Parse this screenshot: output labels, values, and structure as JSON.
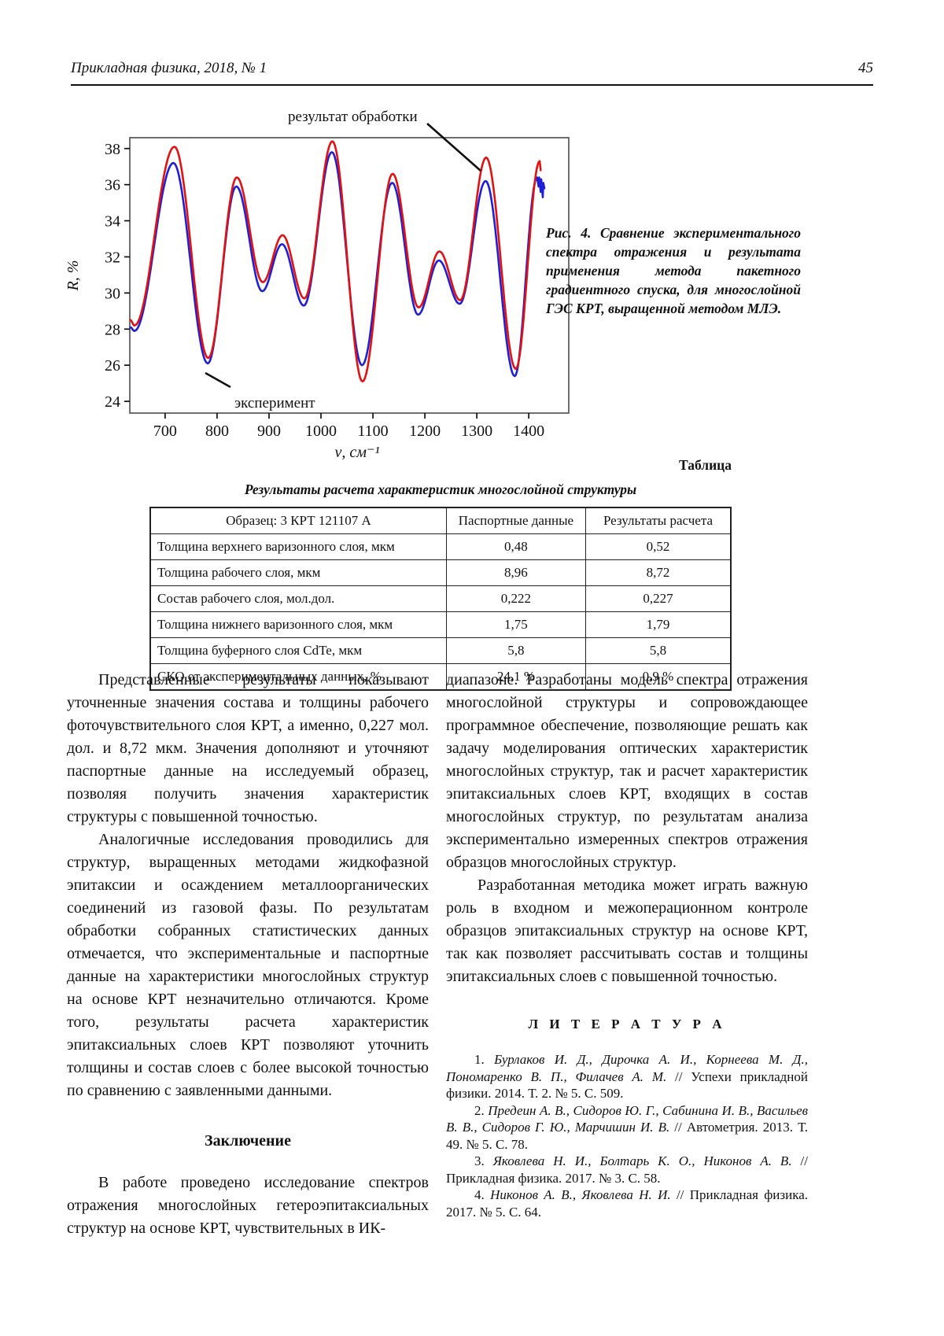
{
  "header": {
    "journal": "Прикладная физика, 2018, № 1",
    "page_number": "45"
  },
  "figure": {
    "caption": "Рис. 4. Сравнение экспериментального спектра отражения и результата применения метода пакетного градиентного спуска, для многослойной ГЭС КРТ, выращенной методом МЛЭ."
  },
  "chart_data": {
    "type": "line",
    "title": "",
    "xlabel": "ν, см⁻¹",
    "ylabel": "R, %",
    "xlim": [
      632,
      1477
    ],
    "ylim": [
      23.35,
      38.6
    ],
    "xticks": [
      700,
      800,
      900,
      1000,
      1100,
      1200,
      1300,
      1400
    ],
    "yticks": [
      24,
      26,
      28,
      30,
      32,
      34,
      36,
      38
    ],
    "grid": false,
    "legend_position": "annotations-on-plot",
    "series": [
      {
        "name": "эксперимент",
        "color": "#1f1fd6",
        "extrema": [
          [
            633,
            28.1
          ],
          [
            641,
            27.9
          ],
          [
            716,
            37.2
          ],
          [
            782,
            26.1
          ],
          [
            837,
            35.9
          ],
          [
            887,
            30.1
          ],
          [
            925,
            32.7
          ],
          [
            967,
            29.3
          ],
          [
            1021,
            37.8
          ],
          [
            1079,
            26.0
          ],
          [
            1137,
            36.1
          ],
          [
            1187,
            28.8
          ],
          [
            1227,
            31.8
          ],
          [
            1267,
            29.4
          ],
          [
            1317,
            36.2
          ],
          [
            1373,
            25.4
          ],
          [
            1416,
            36.4
          ]
        ],
        "tail": [
          [
            1419,
            35.9
          ],
          [
            1420,
            36.4
          ],
          [
            1423,
            35.6
          ],
          [
            1424,
            36.3
          ],
          [
            1427,
            35.3
          ],
          [
            1428,
            36.1
          ],
          [
            1430,
            35.8
          ]
        ]
      },
      {
        "name": "результат обработки",
        "color": "#e01212",
        "extrema": [
          [
            633,
            28.5
          ],
          [
            641,
            28.2
          ],
          [
            718,
            38.1
          ],
          [
            783,
            26.4
          ],
          [
            838,
            36.4
          ],
          [
            888,
            30.6
          ],
          [
            926,
            33.2
          ],
          [
            968,
            29.7
          ],
          [
            1022,
            38.4
          ],
          [
            1080,
            25.1
          ],
          [
            1138,
            36.6
          ],
          [
            1188,
            29.2
          ],
          [
            1228,
            32.3
          ],
          [
            1268,
            29.6
          ],
          [
            1318,
            37.5
          ],
          [
            1375,
            25.8
          ],
          [
            1421,
            37.3
          ]
        ],
        "tail": [
          [
            1423,
            36.8
          ]
        ]
      }
    ],
    "annotations": [
      {
        "text": "результат обработки",
        "label_pos": [
          281,
          32
        ],
        "line": [
          [
            458,
            35
          ],
          [
            526,
            95
          ]
        ]
      },
      {
        "text": "эксперимент",
        "label_pos": [
          213,
          396
        ],
        "line": [
          [
            208,
            370
          ],
          [
            176,
            352
          ]
        ]
      }
    ]
  },
  "table": {
    "label": "Таблица",
    "title": "Результаты расчета характеристик многослойной структуры",
    "header": [
      "Образец: 3 КРТ 121107 А",
      "Паспортные данные",
      "Результаты расчета"
    ],
    "rows": [
      {
        "param": "Толщина верхнего варизонного слоя, мкм",
        "passport": "0,48",
        "calc": "0,52"
      },
      {
        "param": "Толщина рабочего слоя, мкм",
        "passport": "8,96",
        "calc": "8,72"
      },
      {
        "param": "Состав рабочего слоя, мол.дол.",
        "passport": "0,222",
        "calc": "0,227"
      },
      {
        "param": "Толщина нижнего варизонного слоя, мкм",
        "passport": "1,75",
        "calc": "1,79"
      },
      {
        "param": "Толщина буферного слоя CdTe, мкм",
        "passport": "5,8",
        "calc": "5,8"
      },
      {
        "param": "СКО от экспериментальных данных, %",
        "passport": "24,1 %",
        "calc": "0,9 %"
      }
    ]
  },
  "body": {
    "left": {
      "p1": "Представленные результаты показывают уточненные значения состава и толщины рабочего фоточувствительного слоя КРТ, а именно, 0,227 мол. дол. и 8,72 мкм. Значения дополняют и уточняют паспортные данные на исследуемый образец, позволяя получить значения характеристик структуры с повышенной точностью.",
      "p2": "Аналогичные исследования проводились для структур, выращенных методами жидкофазной эпитаксии и осаждением металлоорганических соединений из газовой фазы. По результатам обработки собранных статистических данных отмечается, что экспериментальные и паспортные данные на характеристики многослойных структур на основе КРТ незначительно отличаются. Кроме того, результаты расчета характеристик эпитаксиальных слоев КРТ позволяют уточнить толщины и состав слоев с более высокой точностью по сравнению с заявленными данными.",
      "conclusion_heading": "Заключение",
      "p3": "В работе проведено исследование спектров отражения многослойных гетероэпитаксиальных структур на основе КРТ, чувствительных в ИК-"
    },
    "right": {
      "p4": "диапазоне. Разработаны модель спектра отражения многослойной структуры и сопровождающее программное обеспечение, позволяющие решать как задачу моделирования оптических характеристик многослойных структур, так и расчет характеристик эпитаксиальных слоев КРТ, входящих в состав многослойных структур, по результатам анализа экспериментально измеренных спектров отражения образцов многослойных структур.",
      "p5": "Разработанная методика может играть важную роль в входном и межоперационном контроле образцов эпитаксиальных структур на основе КРТ, так как позволяет рассчитывать состав и толщины эпитаксиальных слоев с повышенной точностью.",
      "literature_heading": "Л И Т Е Р А Т У Р А"
    }
  },
  "references": [
    {
      "num": "1.",
      "authors": "Бурлаков И. Д., Дирочка А. И., Корнеева М. Д., Пономаренко В. П., Филачев А. М.",
      "source": " // Успехи прикладной физики. 2014. Т. 2. № 5. С. 509."
    },
    {
      "num": "2.",
      "authors": "Предеин А. В., Сидоров Ю. Г., Сабинина И. В., Васильев В. В., Сидоров Г. Ю., Марчишин И. В.",
      "source": " // Автометрия. 2013. Т. 49. № 5. С. 78."
    },
    {
      "num": "3.",
      "authors": "Яковлева Н. И., Болтарь К. О., Никонов А. В.",
      "source": " // Прикладная физика. 2017. № 3. С. 58."
    },
    {
      "num": "4.",
      "authors": "Никонов А. В., Яковлева Н. И.",
      "source": " // Прикладная физика. 2017. № 5. С. 64."
    }
  ]
}
